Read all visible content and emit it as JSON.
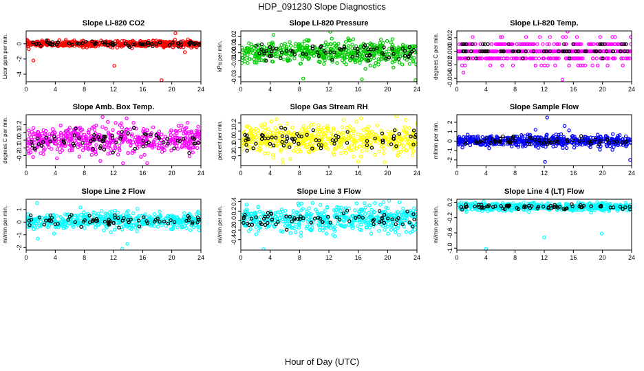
{
  "title": "HDP_091230  Slope Diagnostics",
  "xlabel": "Hour of Day (UTC)",
  "chart_data": [
    {
      "type": "scatter",
      "title": "Slope Li-820 CO2",
      "ylabel": "Licor ppm per min.",
      "color": "#ff0000",
      "xlim": [
        0,
        24
      ],
      "xticks": [
        0,
        4,
        8,
        12,
        16,
        20,
        24
      ],
      "ylim": [
        -5,
        1.7
      ],
      "yticks": [
        -4,
        -2,
        0
      ],
      "yticklabels": [
        "-4",
        "-2",
        "0"
      ],
      "center": 0,
      "spread": 0.2,
      "outliers": [
        {
          "x": 1,
          "y": -2.2
        },
        {
          "x": 12.1,
          "y": -2.9
        },
        {
          "x": 18.6,
          "y": -4.8
        },
        {
          "x": 20.5,
          "y": 1.4
        },
        {
          "x": 21.8,
          "y": -1.1
        }
      ]
    },
    {
      "type": "scatter",
      "title": "Slope Li-820 Pressure",
      "ylabel": "kPa per min.",
      "color": "#00cc00",
      "xlim": [
        0,
        24
      ],
      "xticks": [
        0,
        4,
        8,
        12,
        16,
        20,
        24
      ],
      "ylim": [
        -0.036,
        0.027
      ],
      "yticks": [
        -0.03,
        -0.01,
        0.0,
        0.01,
        0.02
      ],
      "yticklabels": [
        "-0.03",
        "-0.01",
        "0.00",
        "0.01",
        "0.02"
      ],
      "center": 0.0,
      "spread": 0.007,
      "outliers": [
        {
          "x": 12.2,
          "y": 0.026
        },
        {
          "x": 16.5,
          "y": -0.033
        },
        {
          "x": 23.8,
          "y": -0.034
        },
        {
          "x": 8.5,
          "y": -0.032
        }
      ]
    },
    {
      "type": "scatter",
      "title": "Slope Li-820 Temp.",
      "ylabel": "degrees C per min.",
      "color": "#ff00ff",
      "xlim": [
        0,
        24
      ],
      "xticks": [
        0,
        4,
        8,
        12,
        16,
        20,
        24
      ],
      "ylim": [
        -0.0045,
        0.003
      ],
      "yticks": [
        -0.004,
        -0.002,
        0.0,
        0.002
      ],
      "yticklabels": [
        "-0.004",
        "-0.002",
        "0.000",
        "0.002"
      ],
      "center": 0.0,
      "spread": 0.0008,
      "quantum": 0.00105,
      "outliers": [
        {
          "x": 14.5,
          "y": -0.0042
        },
        {
          "x": 15.2,
          "y": 0.0029
        }
      ]
    },
    {
      "type": "scatter",
      "title": "Slope Amb. Box Temp.",
      "ylabel": "degrees C per min.",
      "color": "#ff00ff",
      "xlim": [
        0,
        24
      ],
      "xticks": [
        0,
        4,
        8,
        12,
        16,
        20,
        24
      ],
      "ylim": [
        -0.33,
        0.33
      ],
      "yticks": [
        -0.2,
        -0.1,
        0.0,
        0.1,
        0.2
      ],
      "yticklabels": [
        "-0.2",
        "-0.1",
        "0.0",
        "0.1",
        "0.2"
      ],
      "center": 0.0,
      "spread": 0.09,
      "outliers": [
        {
          "x": 10.5,
          "y": 0.3
        },
        {
          "x": 13.3,
          "y": -0.3
        }
      ]
    },
    {
      "type": "scatter",
      "title": "Slope Gas Stream RH",
      "ylabel": "percent per min.",
      "color": "#ffff00",
      "xlim": [
        0,
        24
      ],
      "xticks": [
        0,
        4,
        8,
        12,
        16,
        20,
        24
      ],
      "ylim": [
        -0.32,
        0.3
      ],
      "yticks": [
        -0.2,
        -0.1,
        0.0,
        0.1,
        0.2
      ],
      "yticklabels": [
        "-0.2",
        "-0.1",
        "0.0",
        "0.1",
        "0.2"
      ],
      "center": 0.0,
      "spread": 0.09,
      "outliers": [
        {
          "x": 19.6,
          "y": -0.28
        },
        {
          "x": 21.2,
          "y": 0.28
        }
      ]
    },
    {
      "type": "scatter",
      "title": "Slope Sample Flow",
      "ylabel": "ml/min per min.",
      "color": "#0000ff",
      "xlim": [
        0,
        24
      ],
      "xticks": [
        0,
        4,
        8,
        12,
        16,
        20,
        24
      ],
      "ylim": [
        -2.6,
        2.8
      ],
      "yticks": [
        -2,
        -1,
        0,
        1,
        2
      ],
      "yticklabels": [
        "-2",
        "-1",
        "0",
        "1",
        "2"
      ],
      "center": 0.0,
      "spread": 0.3,
      "outliers": [
        {
          "x": 12.4,
          "y": 2.5
        },
        {
          "x": 12.1,
          "y": -2.2
        },
        {
          "x": 23.8,
          "y": -2.0
        },
        {
          "x": 14.8,
          "y": 1.6
        },
        {
          "x": 10.8,
          "y": 1.2
        }
      ]
    },
    {
      "type": "scatter",
      "title": "Slope Line 2 Flow",
      "ylabel": "ml/min per min.",
      "color": "#00ffff",
      "xlim": [
        0,
        24
      ],
      "xticks": [
        0,
        4,
        8,
        12,
        16,
        20,
        24
      ],
      "ylim": [
        -2.2,
        1.8
      ],
      "yticks": [
        -2,
        -1,
        0,
        1
      ],
      "yticklabels": [
        "-2",
        "-1",
        "0",
        "1"
      ],
      "center": 0.1,
      "spread": 0.32,
      "outliers": [
        {
          "x": 13.2,
          "y": -2.1
        },
        {
          "x": 1.5,
          "y": 1.5
        },
        {
          "x": 1.6,
          "y": -1.3
        },
        {
          "x": 13.9,
          "y": -1.7
        }
      ]
    },
    {
      "type": "scatter",
      "title": "Slope Line 3 Flow",
      "ylabel": "ml/min per min.",
      "color": "#00ffff",
      "xlim": [
        0,
        24
      ],
      "xticks": [
        0,
        4,
        8,
        12,
        16,
        20,
        24
      ],
      "ylim": [
        -0.62,
        0.45
      ],
      "yticks": [
        -0.4,
        -0.2,
        0.0,
        0.2,
        0.4
      ],
      "yticklabels": [
        "-0.4",
        "-0.2",
        "0.0",
        "0.2",
        "0.4"
      ],
      "center": 0.03,
      "spread": 0.13,
      "outliers": [
        {
          "x": 3.1,
          "y": -0.6
        },
        {
          "x": 20.2,
          "y": 0.42
        }
      ]
    },
    {
      "type": "scatter",
      "title": "Slope Line 4 (LT) Flow",
      "ylabel": "ml/min per min.",
      "color": "#00ffff",
      "xlim": [
        0,
        24
      ],
      "xticks": [
        0,
        4,
        8,
        12,
        16,
        20,
        24
      ],
      "ylim": [
        -1.05,
        0.28
      ],
      "yticks": [
        -1.0,
        -0.6,
        -0.2,
        0.2
      ],
      "yticklabels": [
        "-1.0",
        "-0.6",
        "-0.2",
        "0.2"
      ],
      "center": 0.08,
      "spread": 0.05,
      "outliers": [
        {
          "x": 4.0,
          "y": -1.02
        },
        {
          "x": 12.0,
          "y": -0.72
        },
        {
          "x": 19.9,
          "y": -0.62
        }
      ]
    }
  ]
}
